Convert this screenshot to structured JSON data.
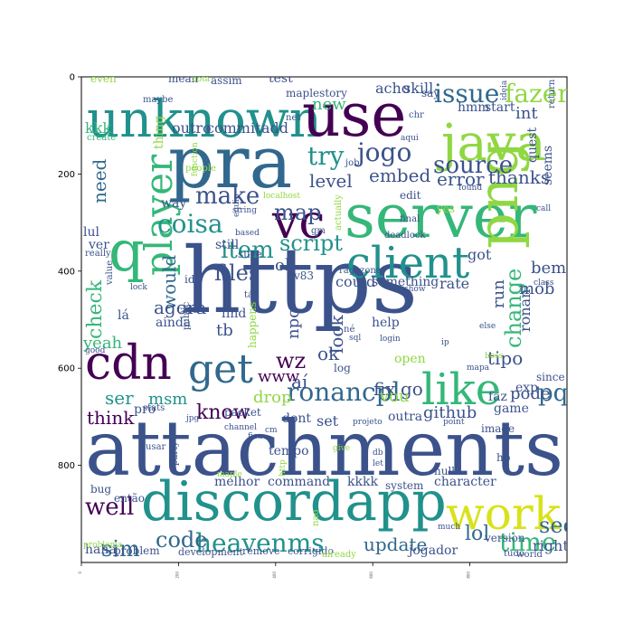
{
  "axes": {
    "y_ticks": [
      "0",
      "200",
      "400",
      "600",
      "800"
    ],
    "x_ticks": [
      "0",
      "200",
      "400",
      "600",
      "800"
    ]
  },
  "palette": {
    "dark_purple": "#440154",
    "indigo": "#3b528b",
    "blue": "#31688e",
    "teal": "#21918c",
    "green": "#35b779",
    "lime": "#90d743",
    "yellow": "#d8e219"
  },
  "words": [
    {
      "text": "https",
      "color": "#3b528b"
    },
    {
      "text": "attachments",
      "color": "#3b528b"
    },
    {
      "text": "discordapp",
      "color": "#21918c"
    },
    {
      "text": "pra",
      "color": "#31688e"
    },
    {
      "text": "server",
      "color": "#35b779"
    },
    {
      "text": "unknown",
      "color": "#21918c"
    },
    {
      "text": "use",
      "color": "#440154"
    },
    {
      "text": "java",
      "color": "#90d743"
    },
    {
      "text": "png",
      "color": "#90d743"
    },
    {
      "text": "cdn",
      "color": "#440154"
    },
    {
      "text": "client",
      "color": "#21918c"
    },
    {
      "text": "like",
      "color": "#35b779"
    },
    {
      "text": "get",
      "color": "#31688e"
    },
    {
      "text": "vc",
      "color": "#440154"
    },
    {
      "text": "q",
      "color": "#35b779"
    },
    {
      "text": "player",
      "color": "#35b779"
    },
    {
      "text": "work",
      "color": "#d8e219"
    },
    {
      "text": "heavenms",
      "color": "#21918c"
    },
    {
      "text": "ronancpl",
      "color": "#31688e"
    },
    {
      "text": "issue",
      "color": "#31688e"
    },
    {
      "text": "fazer",
      "color": "#90d743"
    },
    {
      "text": "try",
      "color": "#21918c"
    },
    {
      "text": "jogo",
      "color": "#3b528b"
    },
    {
      "text": "source",
      "color": "#3b528b"
    },
    {
      "text": "item",
      "color": "#21918c"
    },
    {
      "text": "make",
      "color": "#3b528b"
    },
    {
      "text": "map",
      "color": "#3b528b"
    },
    {
      "text": "coisa",
      "color": "#21918c"
    },
    {
      "text": "script",
      "color": "#21918c"
    },
    {
      "text": "files",
      "color": "#3b528b"
    },
    {
      "text": "would",
      "color": "#31688e"
    },
    {
      "text": "check",
      "color": "#35b779"
    },
    {
      "text": "need",
      "color": "#31688e"
    },
    {
      "text": "change",
      "color": "#35b779"
    },
    {
      "text": "embed",
      "color": "#3b528b"
    },
    {
      "text": "error",
      "color": "#3b528b"
    },
    {
      "text": "thanks",
      "color": "#3b528b"
    },
    {
      "text": "level",
      "color": "#3b528b"
    },
    {
      "text": "agora",
      "color": "#3b528b"
    },
    {
      "text": "time",
      "color": "#35b779"
    },
    {
      "text": "pq",
      "color": "#31688e"
    },
    {
      "text": "know",
      "color": "#440154"
    },
    {
      "text": "wz",
      "color": "#440154"
    },
    {
      "text": "www",
      "color": "#440154"
    },
    {
      "text": "code",
      "color": "#31688e"
    },
    {
      "text": "sim",
      "color": "#31688e"
    },
    {
      "text": "well",
      "color": "#440154"
    },
    {
      "text": "see",
      "color": "#31688e"
    },
    {
      "text": "lol",
      "color": "#31688e"
    },
    {
      "text": "update",
      "color": "#31688e"
    },
    {
      "text": "yeah",
      "color": "#35b779"
    },
    {
      "text": "ser",
      "color": "#21918c"
    },
    {
      "text": "msm",
      "color": "#21918c"
    },
    {
      "text": "think",
      "color": "#440154"
    },
    {
      "text": "look",
      "color": "#3b528b"
    },
    {
      "text": "fix",
      "color": "#3b528b"
    },
    {
      "text": "go",
      "color": "#3b528b"
    },
    {
      "text": "tipo",
      "color": "#3b528b"
    },
    {
      "text": "ronan",
      "color": "#3b528b"
    },
    {
      "text": "run",
      "color": "#3b528b"
    },
    {
      "text": "mob",
      "color": "#3b528b"
    },
    {
      "text": "bem",
      "color": "#3b528b"
    },
    {
      "text": "github",
      "color": "#3b528b"
    },
    {
      "text": "npc",
      "color": "#3b528b"
    },
    {
      "text": "tb",
      "color": "#3b528b"
    },
    {
      "text": "aí",
      "color": "#3b528b"
    },
    {
      "text": "ok",
      "color": "#3b528b"
    },
    {
      "text": "acho",
      "color": "#3b528b"
    },
    {
      "text": "skill",
      "color": "#3b528b"
    },
    {
      "text": "new",
      "color": "#35b779"
    },
    {
      "text": "commit",
      "color": "#3b528b"
    },
    {
      "text": "outro",
      "color": "#3b528b"
    },
    {
      "text": "add",
      "color": "#3b528b"
    },
    {
      "text": "kkk",
      "color": "#35b779"
    },
    {
      "text": "thing",
      "color": "#90d743"
    },
    {
      "text": "way",
      "color": "#3b528b"
    },
    {
      "text": "lul",
      "color": "#3b528b"
    },
    {
      "text": "ver",
      "color": "#3b528b"
    },
    {
      "text": "oh",
      "color": "#3b528b"
    },
    {
      "text": "still",
      "color": "#3b528b"
    },
    {
      "text": "pode",
      "color": "#3b528b"
    },
    {
      "text": "drop",
      "color": "#90d743"
    },
    {
      "text": "vou",
      "color": "#90d743"
    },
    {
      "text": "set",
      "color": "#3b528b"
    },
    {
      "text": "right",
      "color": "#3b528b"
    },
    {
      "text": "int",
      "color": "#3b528b"
    },
    {
      "text": "got",
      "color": "#3b528b"
    },
    {
      "text": "rate",
      "color": "#3b528b"
    },
    {
      "text": "could",
      "color": "#3b528b"
    },
    {
      "text": "something",
      "color": "#3b528b"
    },
    {
      "text": "tempo",
      "color": "#3b528b"
    },
    {
      "text": "melhor",
      "color": "#3b528b"
    },
    {
      "text": "command",
      "color": "#3b528b"
    },
    {
      "text": "kkkk",
      "color": "#3b528b"
    },
    {
      "text": "character",
      "color": "#3b528b"
    },
    {
      "text": "jogador",
      "color": "#3b528b"
    },
    {
      "text": "haha",
      "color": "#3b528b"
    },
    {
      "text": "problem",
      "color": "#3b528b"
    },
    {
      "text": "development",
      "color": "#3b528b"
    },
    {
      "text": "remove",
      "color": "#3b528b"
    },
    {
      "text": "corrigido",
      "color": "#3b528b"
    },
    {
      "text": "bug",
      "color": "#3b528b"
    },
    {
      "text": "então",
      "color": "#3b528b"
    },
    {
      "text": "hmm",
      "color": "#3b528b"
    },
    {
      "text": "start",
      "color": "#3b528b"
    },
    {
      "text": "quest",
      "color": "#3b528b"
    },
    {
      "text": "seems",
      "color": "#3b528b"
    },
    {
      "text": "lá",
      "color": "#3b528b"
    },
    {
      "text": "ainda",
      "color": "#3b528b"
    },
    {
      "text": "find",
      "color": "#3b528b"
    },
    {
      "text": "help",
      "color": "#3b528b"
    },
    {
      "text": "exp",
      "color": "#3b528b"
    },
    {
      "text": "game",
      "color": "#3b528b"
    },
    {
      "text": "faz",
      "color": "#3b528b"
    },
    {
      "text": "test",
      "color": "#3b528b"
    },
    {
      "text": "mean",
      "color": "#3b528b"
    },
    {
      "text": "assim",
      "color": "#3b528b"
    },
    {
      "text": "even",
      "color": "#90d743"
    },
    {
      "text": "dota",
      "color": "#90d743"
    },
    {
      "text": "maplestory",
      "color": "#3b528b"
    },
    {
      "text": "say",
      "color": "#3b528b"
    },
    {
      "text": "net",
      "color": "#3b528b"
    },
    {
      "text": "edit",
      "color": "#3b528b"
    },
    {
      "text": "v83",
      "color": "#3b528b"
    },
    {
      "text": "tá",
      "color": "#3b528b"
    },
    {
      "text": "dont",
      "color": "#3b528b"
    },
    {
      "text": "outra",
      "color": "#3b528b"
    },
    {
      "text": "open",
      "color": "#90d743"
    },
    {
      "text": "pro",
      "color": "#3b528b"
    },
    {
      "text": "packet",
      "color": "#3b528b"
    },
    {
      "text": "log",
      "color": "#3b528b"
    },
    {
      "text": "sure",
      "color": "#3b528b"
    },
    {
      "text": "null",
      "color": "#3b528b"
    },
    {
      "text": "system",
      "color": "#3b528b"
    },
    {
      "text": "image",
      "color": "#3b528b"
    },
    {
      "text": "version",
      "color": "#3b528b"
    },
    {
      "text": "since",
      "color": "#3b528b"
    },
    {
      "text": "tudo",
      "color": "#3b528b"
    },
    {
      "text": "world",
      "color": "#3b528b"
    },
    {
      "text": "already",
      "color": "#90d743"
    },
    {
      "text": "nao",
      "color": "#90d743"
    },
    {
      "text": "hp",
      "color": "#3b528b"
    },
    {
      "text": "id",
      "color": "#3b528b"
    },
    {
      "text": "caso",
      "color": "#3b528b"
    },
    {
      "text": "public",
      "color": "#3b528b"
    },
    {
      "text": "happens",
      "color": "#90d743"
    },
    {
      "text": "yes",
      "color": "#90d743"
    },
    {
      "text": "final",
      "color": "#3b528b"
    },
    {
      "text": "deadlock",
      "color": "#3b528b"
    },
    {
      "text": "ragezone",
      "color": "#3b528b"
    },
    {
      "text": "actually",
      "color": "#90d743"
    },
    {
      "text": "gm",
      "color": "#3b528b"
    },
    {
      "text": "localhost",
      "color": "#90d743"
    },
    {
      "text": "string",
      "color": "#3b528b"
    },
    {
      "text": "based",
      "color": "#3b528b"
    },
    {
      "text": "equip",
      "color": "#3b528b"
    },
    {
      "text": "people",
      "color": "#90d743"
    },
    {
      "text": "function",
      "color": "#90d743"
    },
    {
      "text": "create",
      "color": "#35b779"
    },
    {
      "text": "maybe",
      "color": "#3b528b"
    },
    {
      "text": "really",
      "color": "#3b528b"
    },
    {
      "text": "value",
      "color": "#3b528b"
    },
    {
      "text": "lock",
      "color": "#3b528b"
    },
    {
      "text": "good",
      "color": "#3b528b"
    },
    {
      "text": "stats",
      "color": "#3b528b"
    },
    {
      "text": "jpg",
      "color": "#3b528b"
    },
    {
      "text": "channel",
      "color": "#3b528b"
    },
    {
      "text": "cm",
      "color": "#3b528b"
    },
    {
      "text": "fica",
      "color": "#3b528b"
    },
    {
      "text": "usar",
      "color": "#3b528b"
    },
    {
      "text": "party",
      "color": "#3b528b"
    },
    {
      "text": "maple",
      "color": "#90d743"
    },
    {
      "text": "problema",
      "color": "#90d743"
    },
    {
      "text": "http",
      "color": "#90d743"
    },
    {
      "text": "give",
      "color": "#90d743"
    },
    {
      "text": "db",
      "color": "#3b528b"
    },
    {
      "text": "let",
      "color": "#3b528b"
    },
    {
      "text": "projeto",
      "color": "#3b528b"
    },
    {
      "text": "point",
      "color": "#3b528b"
    },
    {
      "text": "much",
      "color": "#3b528b"
    },
    {
      "text": "boss",
      "color": "#90d743"
    },
    {
      "text": "mapa",
      "color": "#3b528b"
    },
    {
      "text": "else",
      "color": "#3b528b"
    },
    {
      "text": "ip",
      "color": "#3b528b"
    },
    {
      "text": "né",
      "color": "#3b528b"
    },
    {
      "text": "sql",
      "color": "#3b528b"
    },
    {
      "text": "login",
      "color": "#3b528b"
    },
    {
      "text": "show",
      "color": "#3b528b"
    },
    {
      "text": "class",
      "color": "#3b528b"
    },
    {
      "text": "call",
      "color": "#3b528b"
    },
    {
      "text": "found",
      "color": "#3b528b"
    },
    {
      "text": "return",
      "color": "#3b528b"
    },
    {
      "text": "ideia",
      "color": "#3b528b"
    },
    {
      "text": "aqui",
      "color": "#3b528b"
    },
    {
      "text": "chr",
      "color": "#3b528b"
    },
    {
      "text": "job",
      "color": "#3b528b"
    }
  ]
}
